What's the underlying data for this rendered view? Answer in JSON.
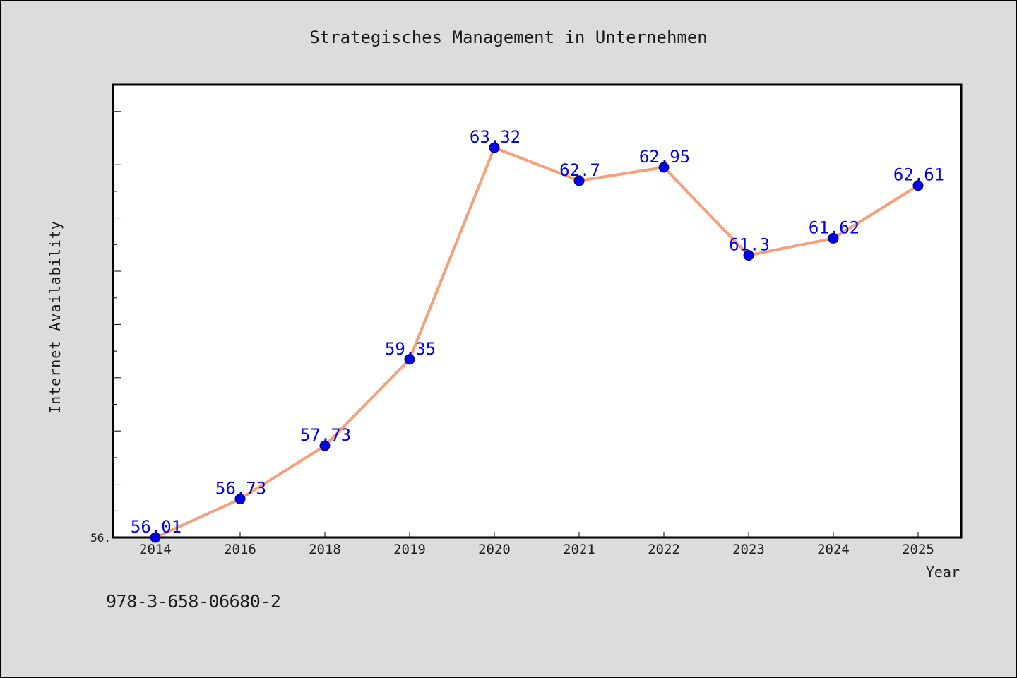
{
  "chart_data": {
    "type": "line",
    "title": "Strategisches Management in Unternehmen",
    "xlabel": "Year",
    "ylabel": "Internet Availability",
    "categories": [
      "2014",
      "2016",
      "2018",
      "2019",
      "2020",
      "2021",
      "2022",
      "2023",
      "2024",
      "2025"
    ],
    "series": [
      {
        "values": [
          56.01,
          56.73,
          57.73,
          59.35,
          63.32,
          62.7,
          62.95,
          61.3,
          61.62,
          62.61
        ],
        "data_labels": [
          "56.01",
          "56.73",
          "57.73",
          "59.35",
          "63.32",
          "62.7",
          "62.95",
          "61.3",
          "61.62",
          "62.61"
        ]
      }
    ],
    "ylim": [
      56.01,
      64.5
    ],
    "y_tick_label_visible": "56.",
    "grid": false,
    "line_color": "#f4a07a",
    "marker_color": "#0000ee",
    "label_color": "#0000ee"
  },
  "footer": {
    "isbn": "978-3-658-06680-2"
  }
}
